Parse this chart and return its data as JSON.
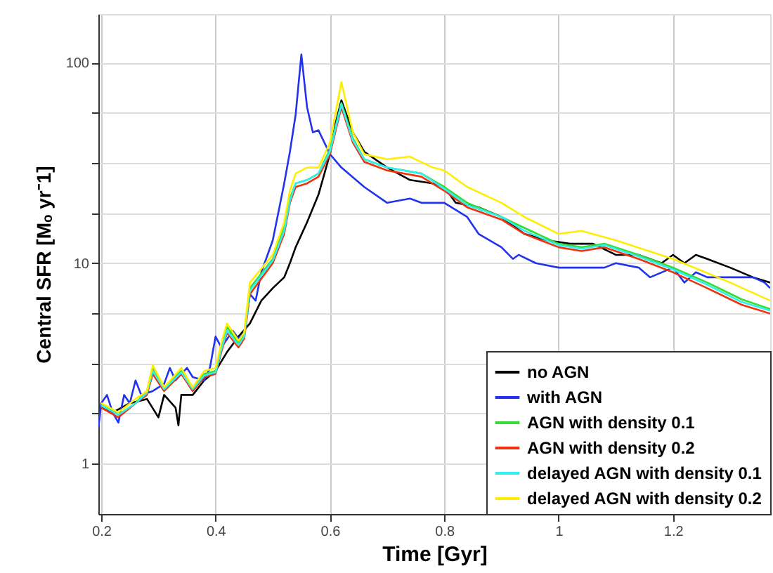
{
  "chart_data": {
    "type": "line",
    "xlabel": "Time [Gyr]",
    "ylabel": "Central SFR [Mₒ yr⁻1]",
    "xlim": [
      0.195,
      1.37
    ],
    "xticks": [
      0.2,
      0.4,
      0.6,
      0.8,
      1,
      1.2
    ],
    "ylim": [
      0.56,
      175
    ],
    "yticks": [
      {
        "value": 1,
        "label": "1"
      },
      {
        "value": 1.778,
        "label": null
      },
      {
        "value": 3.162,
        "label": null
      },
      {
        "value": 5.623,
        "label": null
      },
      {
        "value": 10,
        "label": "10"
      },
      {
        "value": 17.78,
        "label": null
      },
      {
        "value": 31.62,
        "label": null
      },
      {
        "value": 56.23,
        "label": null
      },
      {
        "value": 100,
        "label": "100"
      }
    ],
    "log": "y",
    "grid": true,
    "legend": "bottom right",
    "line_style": "solid",
    "marker": "none",
    "series": [
      {
        "name": "no AGN",
        "color": "#000000",
        "x": [
          0.2,
          0.22,
          0.25,
          0.28,
          0.3,
          0.31,
          0.33,
          0.335,
          0.34,
          0.36,
          0.38,
          0.4,
          0.42,
          0.44,
          0.46,
          0.48,
          0.5,
          0.52,
          0.53,
          0.54,
          0.56,
          0.58,
          0.6,
          0.61,
          0.62,
          0.64,
          0.66,
          0.7,
          0.74,
          0.78,
          0.8,
          0.82,
          0.86,
          0.9,
          0.94,
          0.98,
          1.02,
          1.06,
          1.1,
          1.14,
          1.18,
          1.2,
          1.22,
          1.24,
          1.26,
          1.3,
          1.34,
          1.37
        ],
        "values": [
          1.9,
          1.8,
          2.0,
          2.1,
          1.7,
          2.2,
          1.9,
          1.55,
          2.2,
          2.2,
          2.6,
          2.9,
          3.6,
          4.3,
          5,
          6.5,
          7.5,
          8.5,
          10,
          12,
          16,
          22,
          35,
          50,
          65,
          45,
          36,
          30,
          26,
          25,
          24,
          20,
          19,
          17,
          14,
          13,
          12.5,
          12.5,
          11,
          11,
          10,
          11,
          10,
          11,
          10.5,
          9.5,
          8.5,
          8
        ]
      },
      {
        "name": "with AGN",
        "color": "#2233ee",
        "x": [
          0.195,
          0.2,
          0.21,
          0.22,
          0.23,
          0.24,
          0.25,
          0.26,
          0.27,
          0.29,
          0.31,
          0.32,
          0.33,
          0.34,
          0.35,
          0.36,
          0.38,
          0.39,
          0.4,
          0.41,
          0.43,
          0.44,
          0.45,
          0.46,
          0.47,
          0.48,
          0.5,
          0.52,
          0.53,
          0.54,
          0.55,
          0.56,
          0.57,
          0.58,
          0.6,
          0.62,
          0.66,
          0.7,
          0.74,
          0.76,
          0.8,
          0.84,
          0.86,
          0.9,
          0.92,
          0.93,
          0.96,
          1.0,
          1.04,
          1.08,
          1.1,
          1.14,
          1.16,
          1.2,
          1.22,
          1.24,
          1.26,
          1.3,
          1.34,
          1.36,
          1.37
        ],
        "values": [
          1.5,
          2.0,
          2.2,
          1.8,
          1.6,
          2.2,
          2.0,
          2.6,
          2.2,
          2.3,
          2.5,
          3.0,
          2.6,
          2.8,
          3.0,
          2.7,
          2.6,
          3.0,
          4.3,
          3.8,
          4.6,
          4.2,
          4.5,
          7,
          6.5,
          9,
          13,
          25,
          36,
          55,
          110,
          60,
          45,
          46,
          35,
          30,
          24,
          20,
          21,
          20,
          20,
          17,
          14,
          12,
          10.5,
          11,
          10,
          9.5,
          9.5,
          9.5,
          10,
          9.5,
          8.5,
          9.5,
          8,
          9,
          8.5,
          8.5,
          8.5,
          8,
          7.5
        ]
      },
      {
        "name": "AGN with density 0.1",
        "color": "#33dd33",
        "x": [
          0.2,
          0.23,
          0.26,
          0.28,
          0.29,
          0.31,
          0.34,
          0.36,
          0.38,
          0.4,
          0.41,
          0.42,
          0.44,
          0.45,
          0.46,
          0.5,
          0.52,
          0.53,
          0.54,
          0.56,
          0.58,
          0.6,
          0.62,
          0.64,
          0.66,
          0.7,
          0.76,
          0.8,
          0.84,
          0.9,
          0.94,
          1.0,
          1.04,
          1.08,
          1.14,
          1.2,
          1.26,
          1.32,
          1.37
        ],
        "values": [
          2.0,
          1.75,
          2.0,
          2.3,
          3.0,
          2.4,
          2.9,
          2.4,
          2.8,
          2.9,
          3.8,
          4.8,
          4.0,
          4.4,
          7.5,
          10.5,
          15,
          21,
          25,
          26,
          28,
          37,
          63,
          42,
          33,
          30,
          28,
          24,
          20,
          17,
          15,
          12.5,
          12,
          12.5,
          11,
          9.5,
          8,
          6.6,
          5.9
        ]
      },
      {
        "name": "AGN with density 0.2",
        "color": "#ee3311",
        "x": [
          0.2,
          0.23,
          0.26,
          0.28,
          0.29,
          0.31,
          0.34,
          0.36,
          0.38,
          0.4,
          0.41,
          0.42,
          0.44,
          0.45,
          0.46,
          0.5,
          0.52,
          0.53,
          0.54,
          0.56,
          0.58,
          0.6,
          0.62,
          0.64,
          0.66,
          0.7,
          0.76,
          0.8,
          0.84,
          0.9,
          0.94,
          1.0,
          1.04,
          1.08,
          1.14,
          1.2,
          1.26,
          1.32,
          1.37
        ],
        "values": [
          1.9,
          1.7,
          2.0,
          2.2,
          2.8,
          2.3,
          2.8,
          2.3,
          2.7,
          2.8,
          3.6,
          4.5,
          3.8,
          4.2,
          7,
          10,
          14,
          20,
          24,
          25,
          27,
          35,
          60,
          40,
          32,
          29,
          27,
          23,
          19,
          16.5,
          14,
          12,
          11.5,
          12,
          10.5,
          9,
          7.5,
          6.2,
          5.6
        ]
      },
      {
        "name": "delayed AGN with density 0.1",
        "color": "#33eeee",
        "x": [
          0.2,
          0.23,
          0.26,
          0.28,
          0.29,
          0.31,
          0.34,
          0.36,
          0.38,
          0.4,
          0.41,
          0.42,
          0.44,
          0.45,
          0.46,
          0.5,
          0.52,
          0.53,
          0.54,
          0.56,
          0.58,
          0.6,
          0.62,
          0.64,
          0.66,
          0.7,
          0.76,
          0.8,
          0.84,
          0.9,
          0.94,
          1.0,
          1.04,
          1.08,
          1.14,
          1.2,
          1.26,
          1.32,
          1.37
        ],
        "values": [
          1.95,
          1.75,
          2.0,
          2.25,
          2.9,
          2.35,
          2.85,
          2.35,
          2.75,
          2.85,
          3.7,
          4.6,
          3.9,
          4.3,
          7.3,
          10.3,
          14.5,
          20.5,
          25,
          26,
          28,
          36,
          62,
          41,
          33,
          30,
          28,
          23.5,
          19.5,
          17,
          14.5,
          12.3,
          11.8,
          12.3,
          10.8,
          9.3,
          7.8,
          6.4,
          5.8
        ]
      },
      {
        "name": "delayed AGN with density 0.2",
        "color": "#ffee00",
        "x": [
          0.2,
          0.23,
          0.26,
          0.28,
          0.29,
          0.31,
          0.34,
          0.36,
          0.38,
          0.4,
          0.41,
          0.42,
          0.44,
          0.45,
          0.46,
          0.5,
          0.52,
          0.53,
          0.54,
          0.56,
          0.58,
          0.6,
          0.62,
          0.64,
          0.66,
          0.7,
          0.74,
          0.78,
          0.8,
          0.84,
          0.9,
          0.94,
          1.0,
          1.04,
          1.1,
          1.2,
          1.3,
          1.37
        ],
        "values": [
          2.0,
          1.8,
          2.1,
          2.3,
          3.1,
          2.4,
          3.0,
          2.4,
          2.9,
          3.0,
          4.0,
          5.0,
          4.1,
          4.5,
          8,
          11,
          16,
          23,
          28,
          30,
          30,
          40,
          80,
          45,
          35,
          33,
          34,
          30,
          29,
          24,
          20,
          17,
          14,
          14.5,
          13,
          10.5,
          8,
          6.5
        ]
      }
    ]
  }
}
